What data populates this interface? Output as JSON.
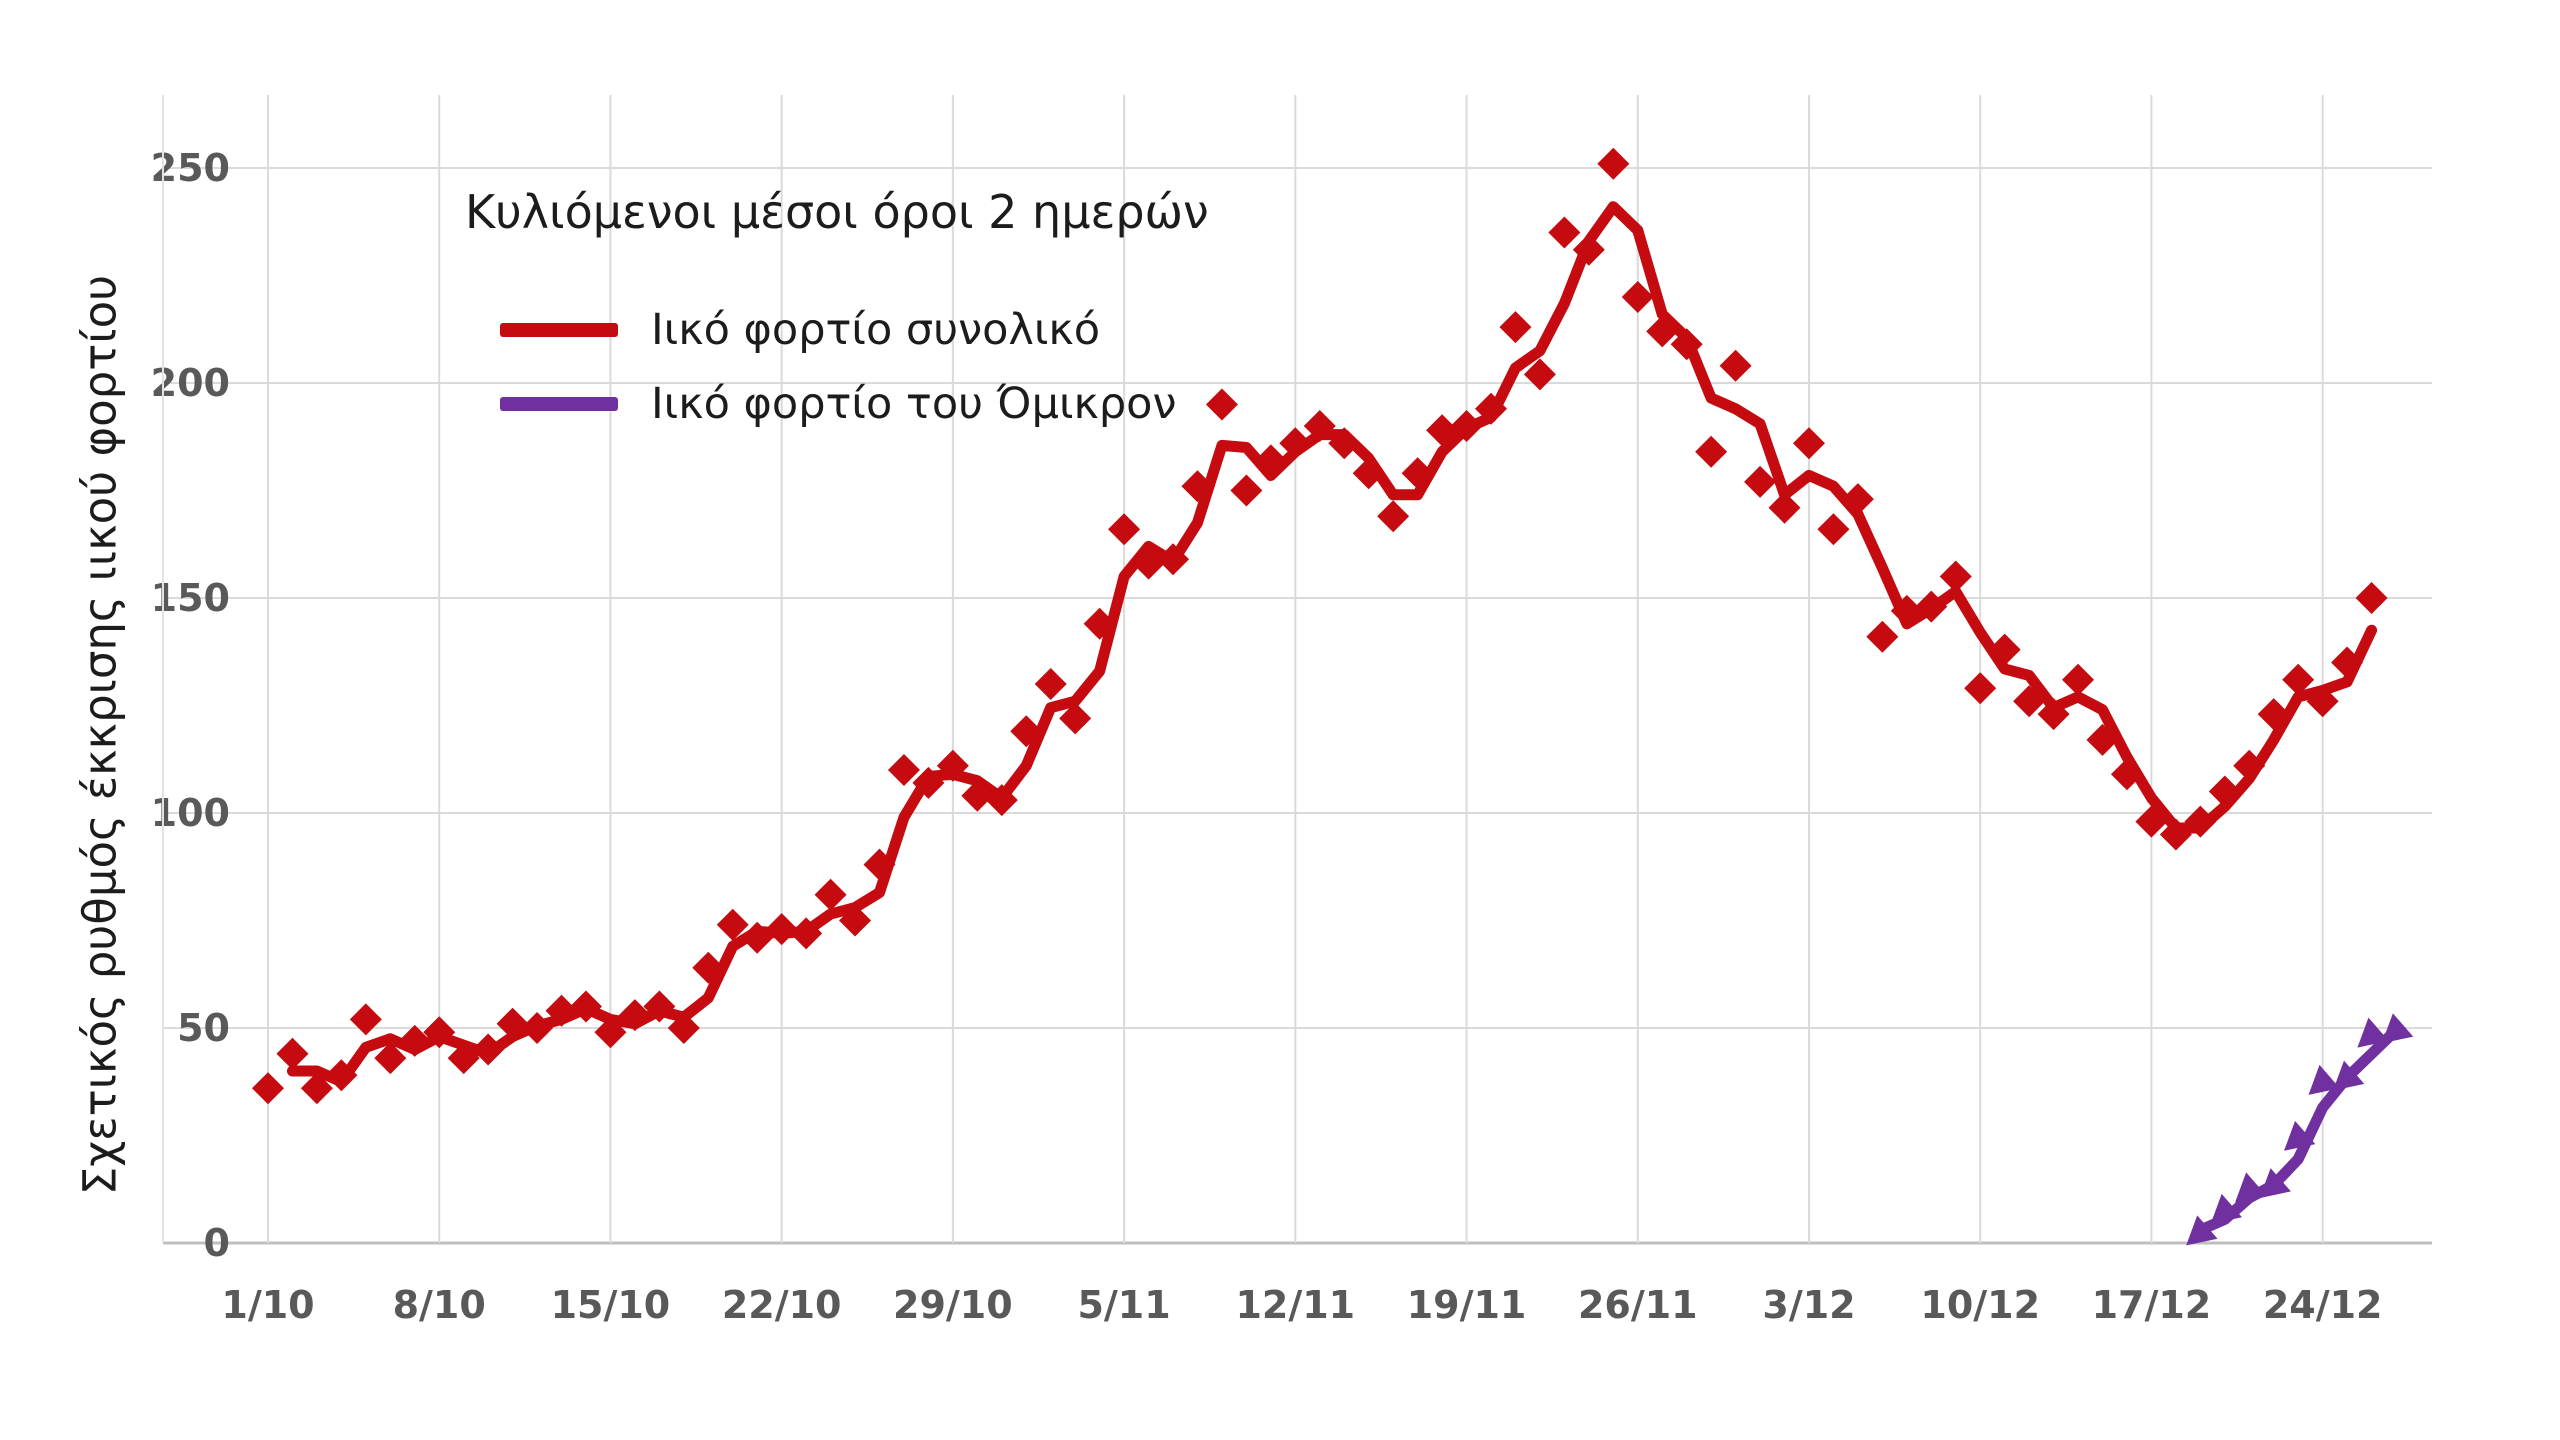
{
  "chart_data": {
    "type": "line",
    "legend_title": "Κυλιόμενοι μέσοι όροι 2 ημερών",
    "ylabel": "Σχετικός ρυθμός έκκρισης ιικού φορτίου",
    "xlabel": "",
    "ylim": [
      0,
      262
    ],
    "y_ticks": [
      0,
      50,
      100,
      150,
      200,
      250
    ],
    "x_tick_labels": [
      "1/10",
      "8/10",
      "15/10",
      "22/10",
      "29/10",
      "5/11",
      "12/11",
      "19/11",
      "26/11",
      "3/12",
      "10/12",
      "17/12",
      "24/12"
    ],
    "grid": "both",
    "legend_position": "top-left-inside",
    "line_rule": "2-day trailing rolling mean of daily points",
    "series": [
      {
        "name": "Ιικό φορτίο συνολικό",
        "color": "#c50a10",
        "marker": "diamond",
        "cadence": "daily",
        "start_date": "1/10",
        "line_start_offset": 1,
        "values": [
          36,
          44,
          36,
          39,
          52,
          43,
          47,
          49,
          43,
          45,
          51,
          50,
          54,
          55,
          49,
          53,
          55,
          50,
          64,
          74,
          71,
          73,
          72,
          81,
          75,
          88,
          110,
          107,
          111,
          104,
          103,
          119,
          130,
          122,
          144,
          166,
          158,
          159,
          176,
          195,
          175,
          182,
          186,
          190,
          186,
          179,
          169,
          179,
          189,
          190,
          194,
          213,
          202,
          235,
          231,
          251,
          220,
          212,
          209,
          184,
          204,
          177,
          171,
          186,
          166,
          173,
          141,
          147,
          148,
          155,
          129,
          138,
          126,
          123,
          131,
          117,
          109,
          98,
          95,
          98,
          105,
          111,
          123,
          131,
          126,
          135,
          150
        ]
      },
      {
        "name": "Ιικό φορτίο του Όμικρον",
        "color": "#7030a0",
        "marker": "triangle",
        "cadence": "daily",
        "start_date": "19/12",
        "line_start_offset": 0,
        "values": [
          3,
          8,
          13,
          14,
          25,
          38,
          39,
          49,
          50
        ]
      }
    ]
  },
  "style_colors": {
    "gridline": "#dadada",
    "axis_line": "#bfbfbf",
    "plot_left_border": "#e2e2e2",
    "tick_label": "#595959",
    "text": "#1c1c1c"
  }
}
